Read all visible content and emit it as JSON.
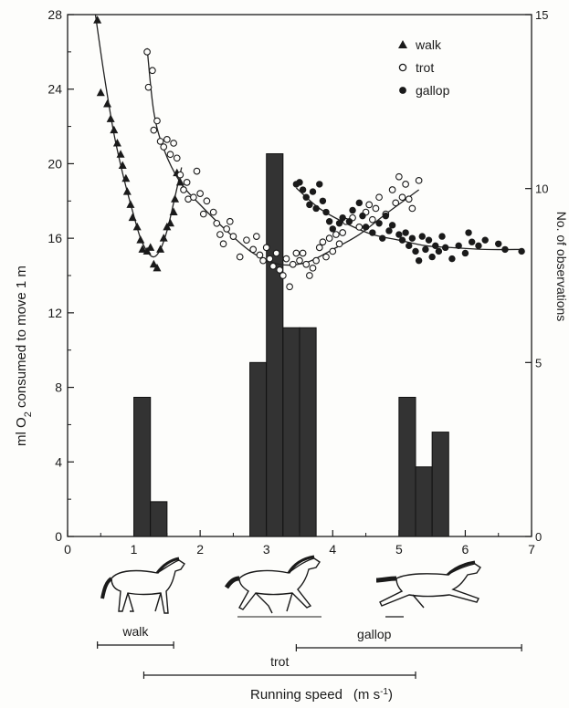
{
  "chart_data": {
    "type": "scatter",
    "xlabel": "Running speed",
    "xlabel_unit": "(m s",
    "xlabel_unit_sup": "-1",
    "xlabel_unit_close": ")",
    "ylabel": "ml O",
    "ylabel_sub": "2",
    "ylabel_rest": " consumed to move 1 m",
    "y2label": "No. of observations",
    "xlim": [
      0,
      7
    ],
    "ylim": [
      0,
      28
    ],
    "y2lim": [
      0,
      15
    ],
    "xticks": [
      "0",
      "1",
      "2",
      "3",
      "4",
      "5",
      "6",
      "7"
    ],
    "yticks": [
      "0",
      "4",
      "8",
      "12",
      "16",
      "20",
      "24",
      "28"
    ],
    "y2ticks": [
      "0",
      "5",
      "10",
      "15"
    ],
    "legend": {
      "placement": "top-right",
      "entries": [
        {
          "label": "walk",
          "marker": "triangle"
        },
        {
          "label": "trot",
          "marker": "open-circle"
        },
        {
          "label": "gallop",
          "marker": "filled-circle"
        }
      ]
    },
    "series": [
      {
        "name": "walk",
        "marker": "triangle",
        "points": [
          [
            0.45,
            27.7
          ],
          [
            0.5,
            23.8
          ],
          [
            0.6,
            23.2
          ],
          [
            0.65,
            22.4
          ],
          [
            0.7,
            21.8
          ],
          [
            0.75,
            21.1
          ],
          [
            0.8,
            20.5
          ],
          [
            0.83,
            19.9
          ],
          [
            0.88,
            19.2
          ],
          [
            0.9,
            18.5
          ],
          [
            0.95,
            17.8
          ],
          [
            0.98,
            17.1
          ],
          [
            1.05,
            16.6
          ],
          [
            1.1,
            15.9
          ],
          [
            1.13,
            15.4
          ],
          [
            1.2,
            15.3
          ],
          [
            1.25,
            15.5
          ],
          [
            1.3,
            14.6
          ],
          [
            1.35,
            14.4
          ],
          [
            1.4,
            15.4
          ],
          [
            1.45,
            16.0
          ],
          [
            1.5,
            16.6
          ],
          [
            1.55,
            16.8
          ],
          [
            1.6,
            17.4
          ],
          [
            1.62,
            18.1
          ],
          [
            1.65,
            19.5
          ],
          [
            1.7,
            19.0
          ]
        ],
        "curve": [
          [
            0.42,
            28.0
          ],
          [
            0.55,
            24.8
          ],
          [
            0.7,
            21.6
          ],
          [
            0.85,
            19.2
          ],
          [
            1.0,
            17.2
          ],
          [
            1.1,
            16.0
          ],
          [
            1.2,
            15.3
          ],
          [
            1.3,
            15.0
          ],
          [
            1.4,
            15.4
          ],
          [
            1.5,
            16.4
          ],
          [
            1.6,
            17.9
          ],
          [
            1.72,
            19.8
          ]
        ]
      },
      {
        "name": "trot",
        "marker": "open-circle",
        "points": [
          [
            1.2,
            26.0
          ],
          [
            1.22,
            24.1
          ],
          [
            1.28,
            25.0
          ],
          [
            1.3,
            21.8
          ],
          [
            1.35,
            22.3
          ],
          [
            1.4,
            21.2
          ],
          [
            1.45,
            20.9
          ],
          [
            1.5,
            21.3
          ],
          [
            1.55,
            20.5
          ],
          [
            1.6,
            21.1
          ],
          [
            1.65,
            20.3
          ],
          [
            1.7,
            19.4
          ],
          [
            1.75,
            18.6
          ],
          [
            1.8,
            19.0
          ],
          [
            1.82,
            18.1
          ],
          [
            1.9,
            18.2
          ],
          [
            1.95,
            19.6
          ],
          [
            2.0,
            18.4
          ],
          [
            2.05,
            17.3
          ],
          [
            2.1,
            18.0
          ],
          [
            2.2,
            17.4
          ],
          [
            2.25,
            16.8
          ],
          [
            2.3,
            16.2
          ],
          [
            2.35,
            15.7
          ],
          [
            2.4,
            16.5
          ],
          [
            2.45,
            16.9
          ],
          [
            2.5,
            16.1
          ],
          [
            2.6,
            15.0
          ],
          [
            2.7,
            15.9
          ],
          [
            2.8,
            15.4
          ],
          [
            2.85,
            16.1
          ],
          [
            2.9,
            15.1
          ],
          [
            2.95,
            14.8
          ],
          [
            3.0,
            15.5
          ],
          [
            3.05,
            14.9
          ],
          [
            3.1,
            14.5
          ],
          [
            3.15,
            15.2
          ],
          [
            3.2,
            14.3
          ],
          [
            3.25,
            14.0
          ],
          [
            3.3,
            14.9
          ],
          [
            3.35,
            13.4
          ],
          [
            3.4,
            14.6
          ],
          [
            3.45,
            15.2
          ],
          [
            3.5,
            14.8
          ],
          [
            3.55,
            15.2
          ],
          [
            3.6,
            14.6
          ],
          [
            3.65,
            14.0
          ],
          [
            3.7,
            14.4
          ],
          [
            3.75,
            14.8
          ],
          [
            3.8,
            15.5
          ],
          [
            3.85,
            15.8
          ],
          [
            3.9,
            15.0
          ],
          [
            3.95,
            16.0
          ],
          [
            4.0,
            15.3
          ],
          [
            4.05,
            16.2
          ],
          [
            4.1,
            15.7
          ],
          [
            4.15,
            16.3
          ],
          [
            4.2,
            16.9
          ],
          [
            4.3,
            17.1
          ],
          [
            4.4,
            16.6
          ],
          [
            4.5,
            17.4
          ],
          [
            4.55,
            17.8
          ],
          [
            4.6,
            17.0
          ],
          [
            4.65,
            17.6
          ],
          [
            4.7,
            18.2
          ],
          [
            4.8,
            17.3
          ],
          [
            4.9,
            18.6
          ],
          [
            4.95,
            17.9
          ],
          [
            5.0,
            19.3
          ],
          [
            5.05,
            18.2
          ],
          [
            5.1,
            18.9
          ],
          [
            5.15,
            18.1
          ],
          [
            5.2,
            17.6
          ],
          [
            5.3,
            19.1
          ]
        ],
        "curve": [
          [
            1.2,
            26.2
          ],
          [
            1.3,
            22.8
          ],
          [
            1.45,
            20.8
          ],
          [
            1.7,
            19.0
          ],
          [
            2.0,
            17.8
          ],
          [
            2.4,
            16.4
          ],
          [
            2.8,
            15.2
          ],
          [
            3.2,
            14.6
          ],
          [
            3.6,
            14.7
          ],
          [
            4.0,
            15.4
          ],
          [
            4.4,
            16.2
          ],
          [
            4.8,
            17.3
          ],
          [
            5.3,
            18.6
          ]
        ]
      },
      {
        "name": "gallop",
        "marker": "filled-circle",
        "points": [
          [
            3.45,
            18.9
          ],
          [
            3.5,
            19.0
          ],
          [
            3.55,
            18.6
          ],
          [
            3.6,
            18.2
          ],
          [
            3.65,
            17.8
          ],
          [
            3.7,
            18.5
          ],
          [
            3.75,
            17.6
          ],
          [
            3.8,
            18.9
          ],
          [
            3.85,
            18.0
          ],
          [
            3.9,
            17.4
          ],
          [
            3.95,
            16.9
          ],
          [
            4.0,
            16.5
          ],
          [
            4.1,
            16.8
          ],
          [
            4.15,
            17.1
          ],
          [
            4.25,
            16.9
          ],
          [
            4.3,
            17.5
          ],
          [
            4.4,
            17.9
          ],
          [
            4.45,
            17.2
          ],
          [
            4.5,
            16.6
          ],
          [
            4.6,
            16.3
          ],
          [
            4.7,
            16.8
          ],
          [
            4.75,
            16.0
          ],
          [
            4.8,
            17.2
          ],
          [
            4.85,
            16.4
          ],
          [
            4.9,
            16.7
          ],
          [
            5.0,
            16.2
          ],
          [
            5.05,
            15.9
          ],
          [
            5.1,
            16.3
          ],
          [
            5.15,
            15.6
          ],
          [
            5.2,
            16.0
          ],
          [
            5.25,
            15.3
          ],
          [
            5.3,
            14.8
          ],
          [
            5.35,
            16.1
          ],
          [
            5.4,
            15.4
          ],
          [
            5.45,
            15.9
          ],
          [
            5.5,
            15.0
          ],
          [
            5.55,
            15.6
          ],
          [
            5.6,
            15.3
          ],
          [
            5.65,
            16.1
          ],
          [
            5.7,
            15.5
          ],
          [
            5.8,
            14.9
          ],
          [
            5.9,
            15.6
          ],
          [
            6.0,
            15.2
          ],
          [
            6.05,
            16.3
          ],
          [
            6.1,
            15.8
          ],
          [
            6.2,
            15.6
          ],
          [
            6.3,
            15.9
          ],
          [
            6.5,
            15.7
          ],
          [
            6.6,
            15.4
          ],
          [
            6.85,
            15.3
          ]
        ],
        "curve": [
          [
            3.45,
            18.7
          ],
          [
            3.8,
            17.6
          ],
          [
            4.2,
            16.8
          ],
          [
            4.6,
            16.2
          ],
          [
            5.0,
            15.9
          ],
          [
            5.4,
            15.6
          ],
          [
            5.8,
            15.5
          ],
          [
            6.3,
            15.4
          ],
          [
            6.85,
            15.4
          ]
        ]
      }
    ],
    "histogram": {
      "axis": "right",
      "bin_width": 0.25,
      "bins": [
        {
          "start": 1.0,
          "count": 4
        },
        {
          "start": 1.25,
          "count": 1
        },
        {
          "start": 2.75,
          "count": 5
        },
        {
          "start": 3.0,
          "count": 11
        },
        {
          "start": 3.25,
          "count": 6
        },
        {
          "start": 3.5,
          "count": 6
        },
        {
          "start": 5.0,
          "count": 4
        },
        {
          "start": 5.25,
          "count": 2
        },
        {
          "start": 5.5,
          "count": 3
        }
      ]
    },
    "gait_ranges": [
      {
        "label": "walk",
        "from": 0.45,
        "to": 1.6
      },
      {
        "label": "trot",
        "from": 1.15,
        "to": 5.25
      },
      {
        "label": "gallop",
        "from": 3.45,
        "to": 6.85
      }
    ]
  },
  "icons": [
    "walking-horse-icon",
    "trotting-horse-icon",
    "galloping-horse-icon"
  ]
}
